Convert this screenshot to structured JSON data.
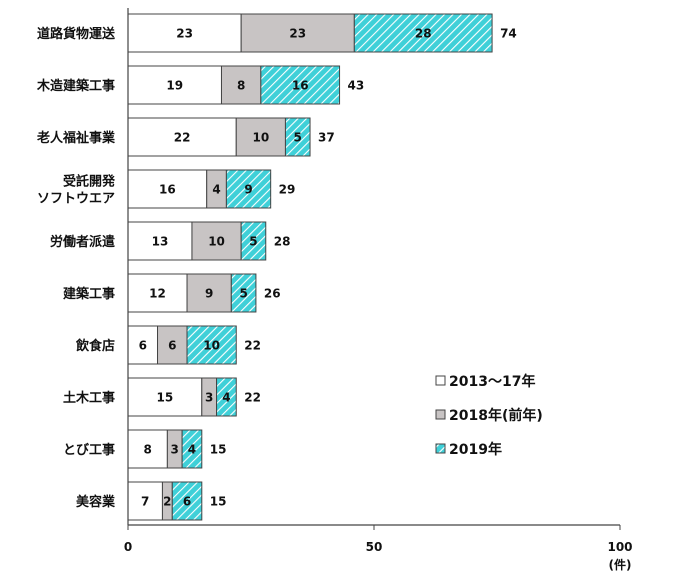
{
  "chart_data": {
    "type": "bar",
    "orientation": "horizontal",
    "stacked": true,
    "categories": [
      "道路貨物運送",
      "木造建築工事",
      "老人福祉事業",
      "受託開発\nソフトウエア",
      "労働者派遣",
      "建築工事",
      "飲食店",
      "土木工事",
      "とび工事",
      "美容業"
    ],
    "series": [
      {
        "name": "2013～17年",
        "values": [
          23,
          19,
          22,
          16,
          13,
          12,
          6,
          15,
          8,
          7
        ],
        "color": "#ffffff",
        "pattern": "none"
      },
      {
        "name": "2018年(前年)",
        "values": [
          23,
          8,
          10,
          4,
          10,
          9,
          6,
          3,
          3,
          2
        ],
        "color": "#c8c4c4",
        "pattern": "none"
      },
      {
        "name": "2019年",
        "values": [
          28,
          16,
          5,
          9,
          5,
          5,
          10,
          4,
          4,
          6
        ],
        "color": "#3fd0d8",
        "pattern": "diagonal-hatch"
      }
    ],
    "totals": [
      74,
      43,
      37,
      29,
      28,
      26,
      22,
      22,
      15,
      15
    ],
    "xlim": [
      0,
      100
    ],
    "xticks": [
      "0",
      "50",
      "100"
    ],
    "xunit": "(件)",
    "grid": false,
    "legend_position": "right"
  }
}
